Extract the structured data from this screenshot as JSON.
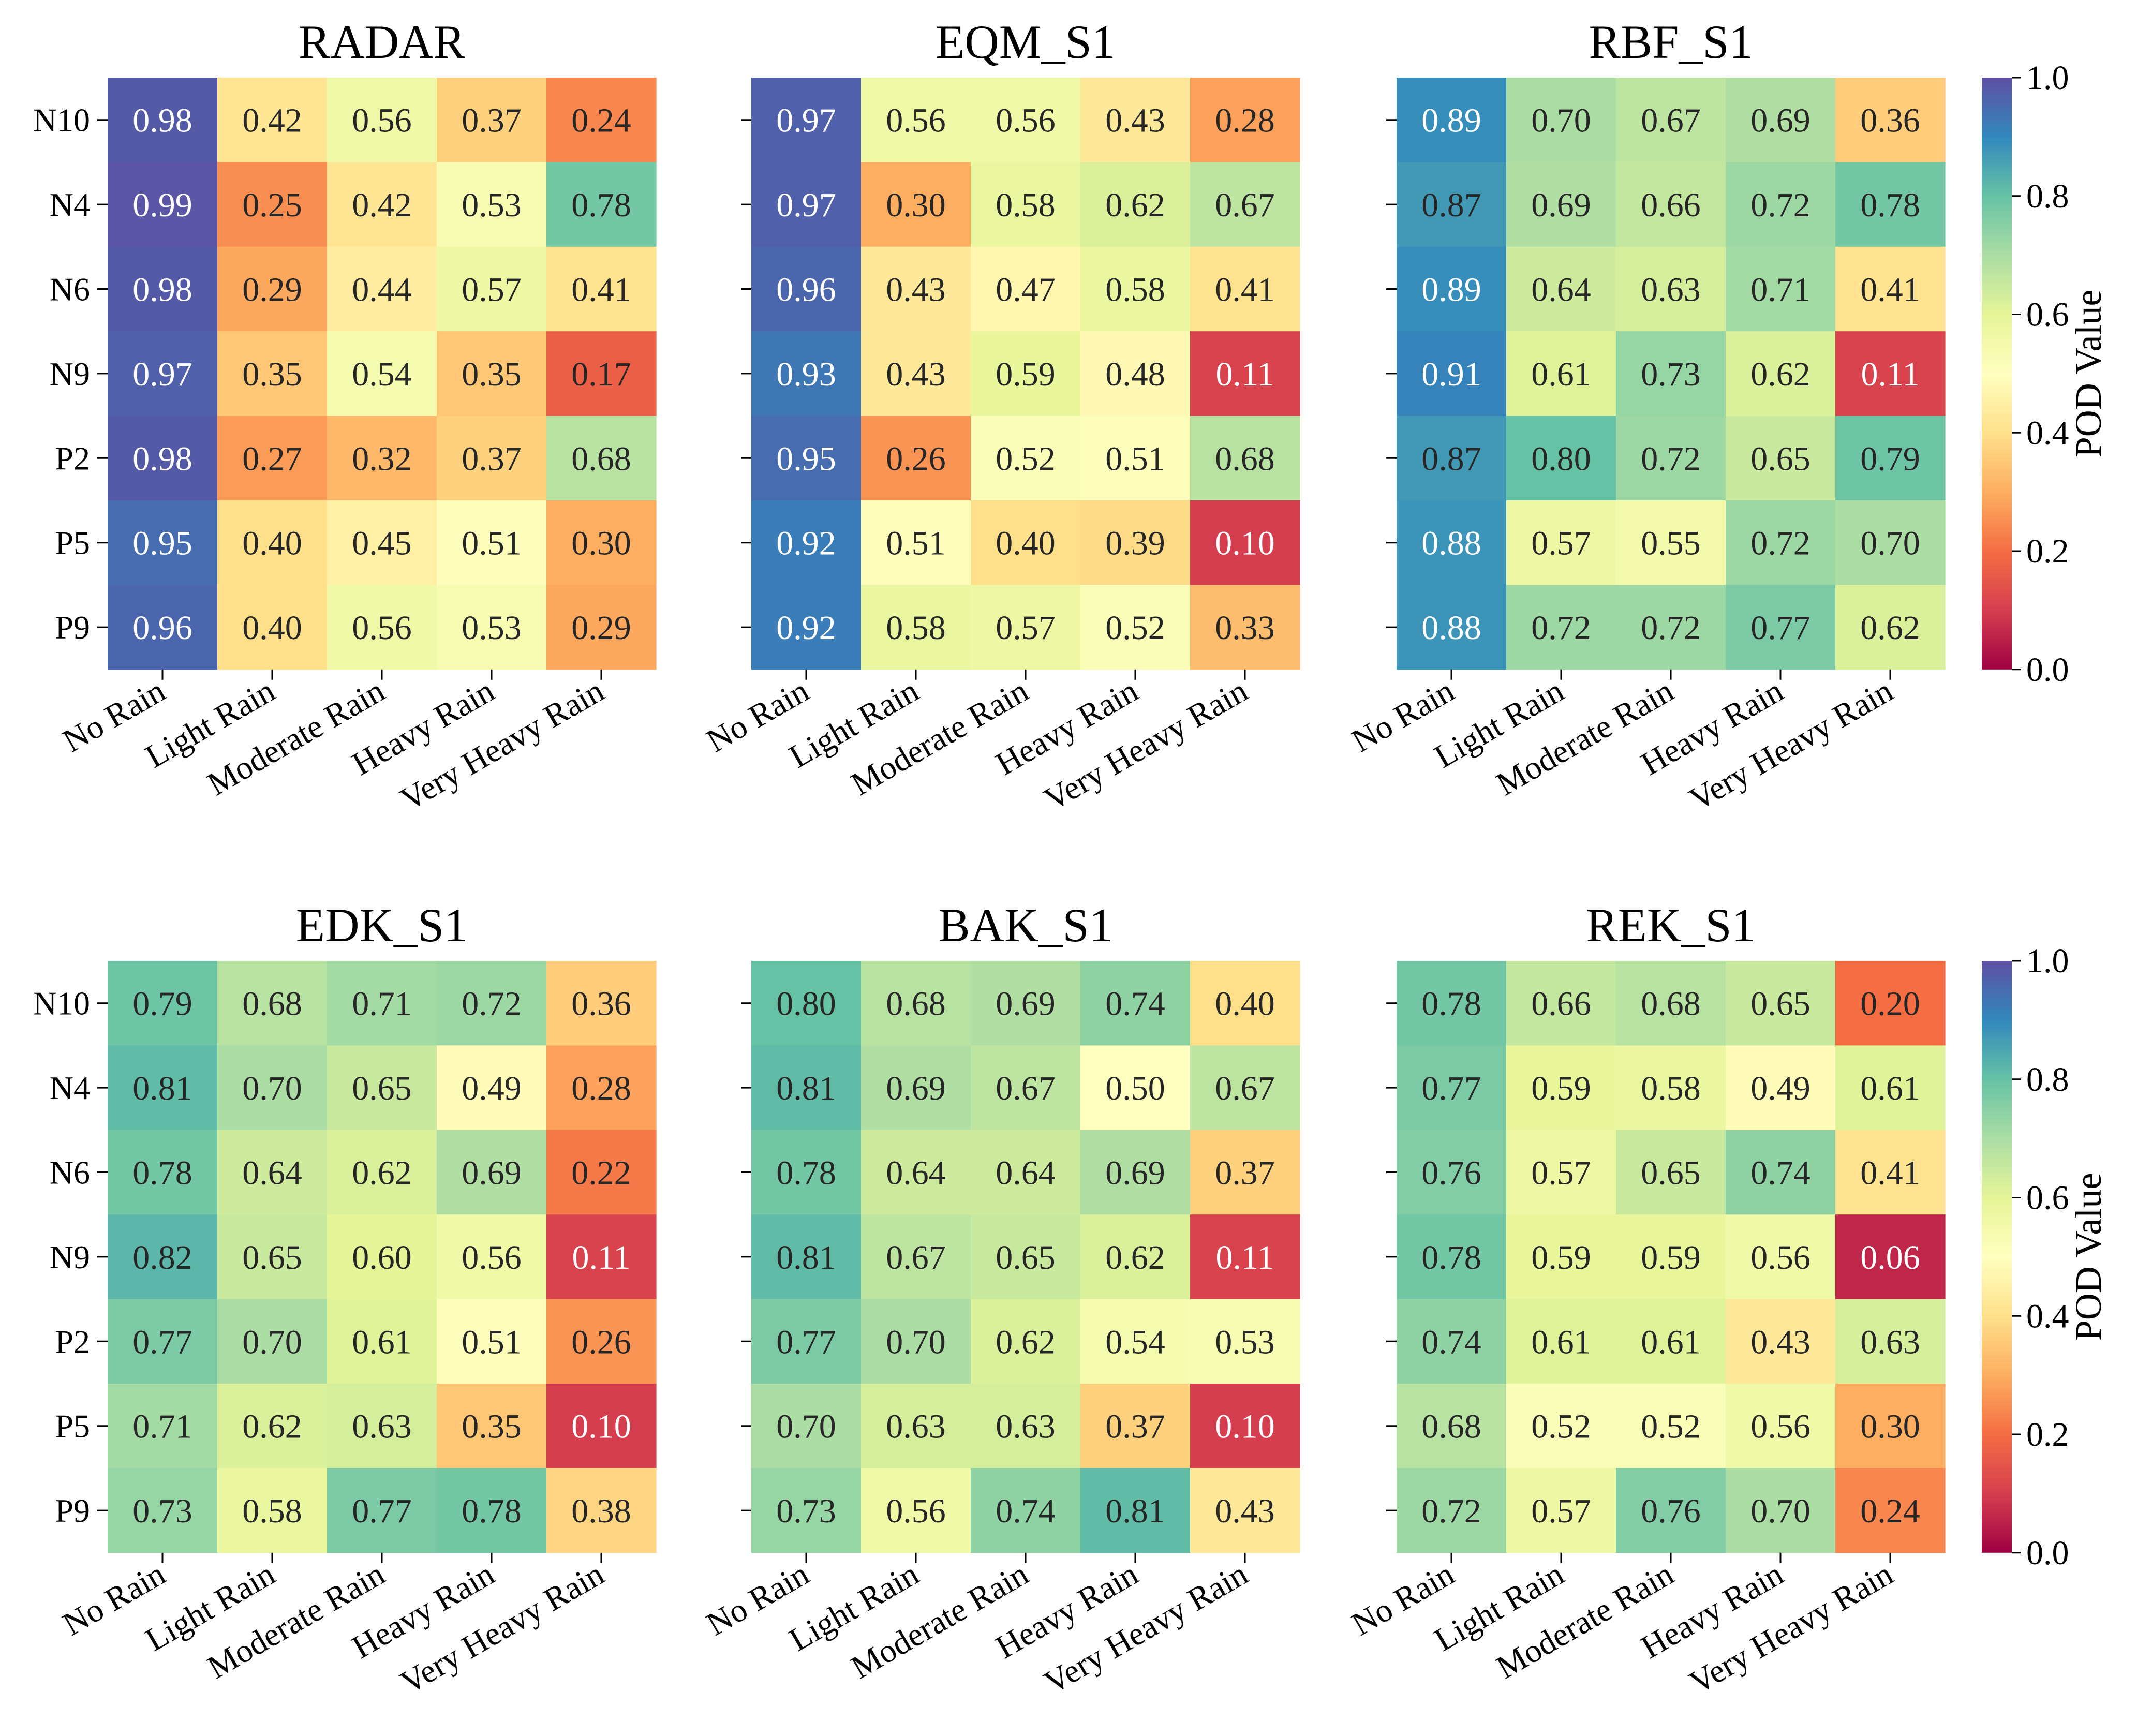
{
  "chart_data": {
    "type": "heatmap",
    "colormap": "Spectral",
    "vmin": 0.0,
    "vmax": 1.0,
    "x_categories": [
      "No Rain",
      "Light Rain",
      "Moderate Rain",
      "Heavy Rain",
      "Very Heavy Rain"
    ],
    "y_categories": [
      "N10",
      "N4",
      "N6",
      "N9",
      "P2",
      "P5",
      "P9"
    ],
    "colorbar": {
      "label": "POD Value",
      "ticks": [
        "0.0",
        "0.2",
        "0.4",
        "0.6",
        "0.8",
        "1.0"
      ]
    },
    "panels": [
      {
        "title": "RADAR",
        "values": [
          [
            0.98,
            0.42,
            0.56,
            0.37,
            0.24
          ],
          [
            0.99,
            0.25,
            0.42,
            0.53,
            0.78
          ],
          [
            0.98,
            0.29,
            0.44,
            0.57,
            0.41
          ],
          [
            0.97,
            0.35,
            0.54,
            0.35,
            0.17
          ],
          [
            0.98,
            0.27,
            0.32,
            0.37,
            0.68
          ],
          [
            0.95,
            0.4,
            0.45,
            0.51,
            0.3
          ],
          [
            0.96,
            0.4,
            0.56,
            0.53,
            0.29
          ]
        ]
      },
      {
        "title": "EQM_S1",
        "values": [
          [
            0.97,
            0.56,
            0.56,
            0.43,
            0.28
          ],
          [
            0.97,
            0.3,
            0.58,
            0.62,
            0.67
          ],
          [
            0.96,
            0.43,
            0.47,
            0.58,
            0.41
          ],
          [
            0.93,
            0.43,
            0.59,
            0.48,
            0.11
          ],
          [
            0.95,
            0.26,
            0.52,
            0.51,
            0.68
          ],
          [
            0.92,
            0.51,
            0.4,
            0.39,
            0.1
          ],
          [
            0.92,
            0.58,
            0.57,
            0.52,
            0.33
          ]
        ]
      },
      {
        "title": "RBF_S1",
        "values": [
          [
            0.89,
            0.7,
            0.67,
            0.69,
            0.36
          ],
          [
            0.87,
            0.69,
            0.66,
            0.72,
            0.78
          ],
          [
            0.89,
            0.64,
            0.63,
            0.71,
            0.41
          ],
          [
            0.91,
            0.61,
            0.73,
            0.62,
            0.11
          ],
          [
            0.87,
            0.8,
            0.72,
            0.65,
            0.79
          ],
          [
            0.88,
            0.57,
            0.55,
            0.72,
            0.7
          ],
          [
            0.88,
            0.72,
            0.72,
            0.77,
            0.62
          ]
        ]
      },
      {
        "title": "EDK_S1",
        "values": [
          [
            0.79,
            0.68,
            0.71,
            0.72,
            0.36
          ],
          [
            0.81,
            0.7,
            0.65,
            0.49,
            0.28
          ],
          [
            0.78,
            0.64,
            0.62,
            0.69,
            0.22
          ],
          [
            0.82,
            0.65,
            0.6,
            0.56,
            0.11
          ],
          [
            0.77,
            0.7,
            0.61,
            0.51,
            0.26
          ],
          [
            0.71,
            0.62,
            0.63,
            0.35,
            0.1
          ],
          [
            0.73,
            0.58,
            0.77,
            0.78,
            0.38
          ]
        ]
      },
      {
        "title": "BAK_S1",
        "values": [
          [
            0.8,
            0.68,
            0.69,
            0.74,
            0.4
          ],
          [
            0.81,
            0.69,
            0.67,
            0.5,
            0.67
          ],
          [
            0.78,
            0.64,
            0.64,
            0.69,
            0.37
          ],
          [
            0.81,
            0.67,
            0.65,
            0.62,
            0.11
          ],
          [
            0.77,
            0.7,
            0.62,
            0.54,
            0.53
          ],
          [
            0.7,
            0.63,
            0.63,
            0.37,
            0.1
          ],
          [
            0.73,
            0.56,
            0.74,
            0.81,
            0.43
          ]
        ]
      },
      {
        "title": "REK_S1",
        "values": [
          [
            0.78,
            0.66,
            0.68,
            0.65,
            0.2
          ],
          [
            0.77,
            0.59,
            0.58,
            0.49,
            0.61
          ],
          [
            0.76,
            0.57,
            0.65,
            0.74,
            0.41
          ],
          [
            0.78,
            0.59,
            0.59,
            0.56,
            0.06
          ],
          [
            0.74,
            0.61,
            0.61,
            0.43,
            0.63
          ],
          [
            0.68,
            0.52,
            0.52,
            0.56,
            0.3
          ],
          [
            0.72,
            0.57,
            0.76,
            0.7,
            0.24
          ]
        ]
      }
    ]
  }
}
